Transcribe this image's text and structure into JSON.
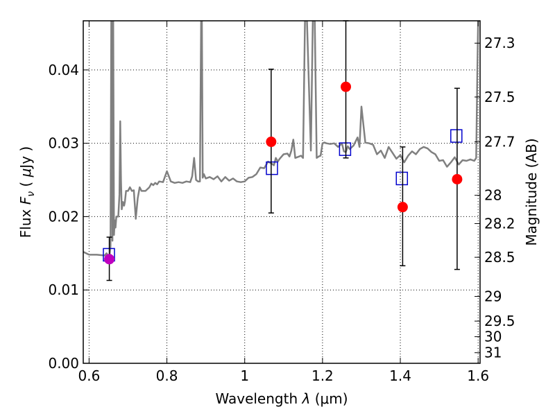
{
  "chart_data": {
    "type": "scatter",
    "xlabel": "Wavelength  λ (μm)",
    "ylabel": "Flux  F_ν  ( μJy )",
    "ylabel_parts": {
      "word": "Flux",
      "symbol": "F",
      "subscript": "ν",
      "unit_open": "(",
      "unit_mu": "μ",
      "unit": "Jy",
      "unit_close": ")"
    },
    "xlabel_parts": {
      "word": "Wavelength",
      "symbol": "λ",
      "unit": "(μm)"
    },
    "y2label": "Magnitude (AB)",
    "xlim": [
      0.585,
      1.605
    ],
    "ylim": [
      0.0,
      0.0467
    ],
    "x_ticks": [
      {
        "value": 0.6,
        "label": "0.6"
      },
      {
        "value": 0.8,
        "label": "0.8"
      },
      {
        "value": 1.0,
        "label": "1"
      },
      {
        "value": 1.2,
        "label": "1.2"
      },
      {
        "value": 1.4,
        "label": "1.4"
      },
      {
        "value": 1.6,
        "label": "1.6"
      }
    ],
    "y_ticks": [
      {
        "value": 0.0,
        "label": "0.00"
      },
      {
        "value": 0.01,
        "label": "0.01"
      },
      {
        "value": 0.02,
        "label": "0.02"
      },
      {
        "value": 0.03,
        "label": "0.03"
      },
      {
        "value": 0.04,
        "label": "0.04"
      }
    ],
    "y2_ticks": [
      {
        "value": 27.3,
        "label": "27.3"
      },
      {
        "value": 27.5,
        "label": "27.5"
      },
      {
        "value": 27.7,
        "label": "27.7"
      },
      {
        "value": 28.0,
        "label": "28"
      },
      {
        "value": 28.2,
        "label": "28.2"
      },
      {
        "value": 28.5,
        "label": "28.5"
      },
      {
        "value": 29.0,
        "label": "29"
      },
      {
        "value": 29.5,
        "label": "29.5"
      },
      {
        "value": 30.0,
        "label": "30"
      },
      {
        "value": 31.0,
        "label": "31"
      }
    ],
    "grid": true,
    "colors": {
      "model": "#808080",
      "observed": "#ff0000",
      "observed_blue_band": "#bf00bf",
      "model_photometry": "#0000cc",
      "errorbar": "#000000"
    },
    "model_spectrum": {
      "x": [
        0.585,
        0.6,
        0.62,
        0.64,
        0.645,
        0.65,
        0.653,
        0.655,
        0.656,
        0.657,
        0.658,
        0.659,
        0.66,
        0.661,
        0.662,
        0.664,
        0.666,
        0.668,
        0.67,
        0.675,
        0.678,
        0.68,
        0.682,
        0.684,
        0.687,
        0.69,
        0.692,
        0.695,
        0.7,
        0.705,
        0.71,
        0.715,
        0.72,
        0.725,
        0.73,
        0.735,
        0.745,
        0.755,
        0.76,
        0.765,
        0.77,
        0.775,
        0.78,
        0.79,
        0.8,
        0.81,
        0.82,
        0.83,
        0.84,
        0.85,
        0.86,
        0.865,
        0.87,
        0.875,
        0.88,
        0.885,
        0.888,
        0.89,
        0.892,
        0.895,
        0.9,
        0.91,
        0.92,
        0.93,
        0.94,
        0.95,
        0.96,
        0.97,
        0.98,
        0.99,
        1.0,
        1.01,
        1.02,
        1.03,
        1.04,
        1.05,
        1.06,
        1.07,
        1.075,
        1.08,
        1.085,
        1.09,
        1.1,
        1.11,
        1.115,
        1.12,
        1.125,
        1.13,
        1.14,
        1.145,
        1.15,
        1.155,
        1.16,
        1.17,
        1.175,
        1.18,
        1.185,
        1.19,
        1.195,
        1.2,
        1.205,
        1.21,
        1.22,
        1.23,
        1.24,
        1.25,
        1.255,
        1.26,
        1.265,
        1.27,
        1.28,
        1.29,
        1.295,
        1.3,
        1.31,
        1.32,
        1.33,
        1.34,
        1.35,
        1.36,
        1.37,
        1.38,
        1.39,
        1.4,
        1.41,
        1.42,
        1.43,
        1.44,
        1.45,
        1.46,
        1.47,
        1.48,
        1.49,
        1.5,
        1.51,
        1.52,
        1.53,
        1.54,
        1.55,
        1.56,
        1.57,
        1.58,
        1.59,
        1.595,
        1.598,
        1.6,
        1.605
      ],
      "y": [
        0.0152,
        0.0148,
        0.0148,
        0.0147,
        0.015,
        0.0145,
        0.0148,
        0.016,
        0.03,
        0.0467,
        0.0467,
        0.03,
        0.0167,
        0.0467,
        0.0467,
        0.0175,
        0.0195,
        0.0185,
        0.02,
        0.02,
        0.023,
        0.033,
        0.025,
        0.021,
        0.022,
        0.0215,
        0.022,
        0.0235,
        0.0235,
        0.024,
        0.0235,
        0.0236,
        0.0197,
        0.0225,
        0.024,
        0.0235,
        0.0235,
        0.024,
        0.0245,
        0.0243,
        0.0246,
        0.0244,
        0.0248,
        0.0247,
        0.0262,
        0.0248,
        0.0246,
        0.0247,
        0.0246,
        0.0248,
        0.0247,
        0.0255,
        0.028,
        0.025,
        0.0248,
        0.0248,
        0.0467,
        0.0467,
        0.0253,
        0.0258,
        0.0252,
        0.0254,
        0.0251,
        0.0255,
        0.0248,
        0.0254,
        0.0249,
        0.0252,
        0.0248,
        0.0247,
        0.0248,
        0.0253,
        0.0254,
        0.0258,
        0.0267,
        0.0266,
        0.0275,
        0.0272,
        0.027,
        0.028,
        0.0275,
        0.0279,
        0.0285,
        0.0286,
        0.0282,
        0.029,
        0.0305,
        0.028,
        0.0282,
        0.0283,
        0.028,
        0.0467,
        0.0467,
        0.029,
        0.0467,
        0.0467,
        0.028,
        0.0282,
        0.0283,
        0.03,
        0.0301,
        0.03,
        0.0299,
        0.03,
        0.0295,
        0.03,
        0.0289,
        0.0288,
        0.0296,
        0.0292,
        0.0297,
        0.0308,
        0.0295,
        0.035,
        0.0301,
        0.03,
        0.0298,
        0.0285,
        0.029,
        0.028,
        0.0295,
        0.0287,
        0.0279,
        0.0284,
        0.0274,
        0.0283,
        0.0289,
        0.0285,
        0.0292,
        0.0295,
        0.0293,
        0.0288,
        0.0285,
        0.0276,
        0.0277,
        0.0268,
        0.0274,
        0.0281,
        0.0271,
        0.0277,
        0.0276,
        0.0278,
        0.0276,
        0.028,
        0.04,
        0.0467,
        0.0467
      ]
    },
    "model_photometry": {
      "x": [
        0.651,
        1.07,
        1.258,
        1.404,
        1.544
      ],
      "y": [
        0.0148,
        0.0266,
        0.0292,
        0.0252,
        0.031
      ]
    },
    "observed": {
      "x": [
        0.652,
        1.068,
        1.26,
        1.406,
        1.546
      ],
      "y": [
        0.0142,
        0.0302,
        0.0377,
        0.0213,
        0.0251
      ],
      "yerr_low": [
        0.0113,
        0.0205,
        0.028,
        0.0133,
        0.0128
      ],
      "yerr_high": [
        0.0172,
        0.0401,
        0.0467,
        0.0295,
        0.0375
      ]
    }
  }
}
